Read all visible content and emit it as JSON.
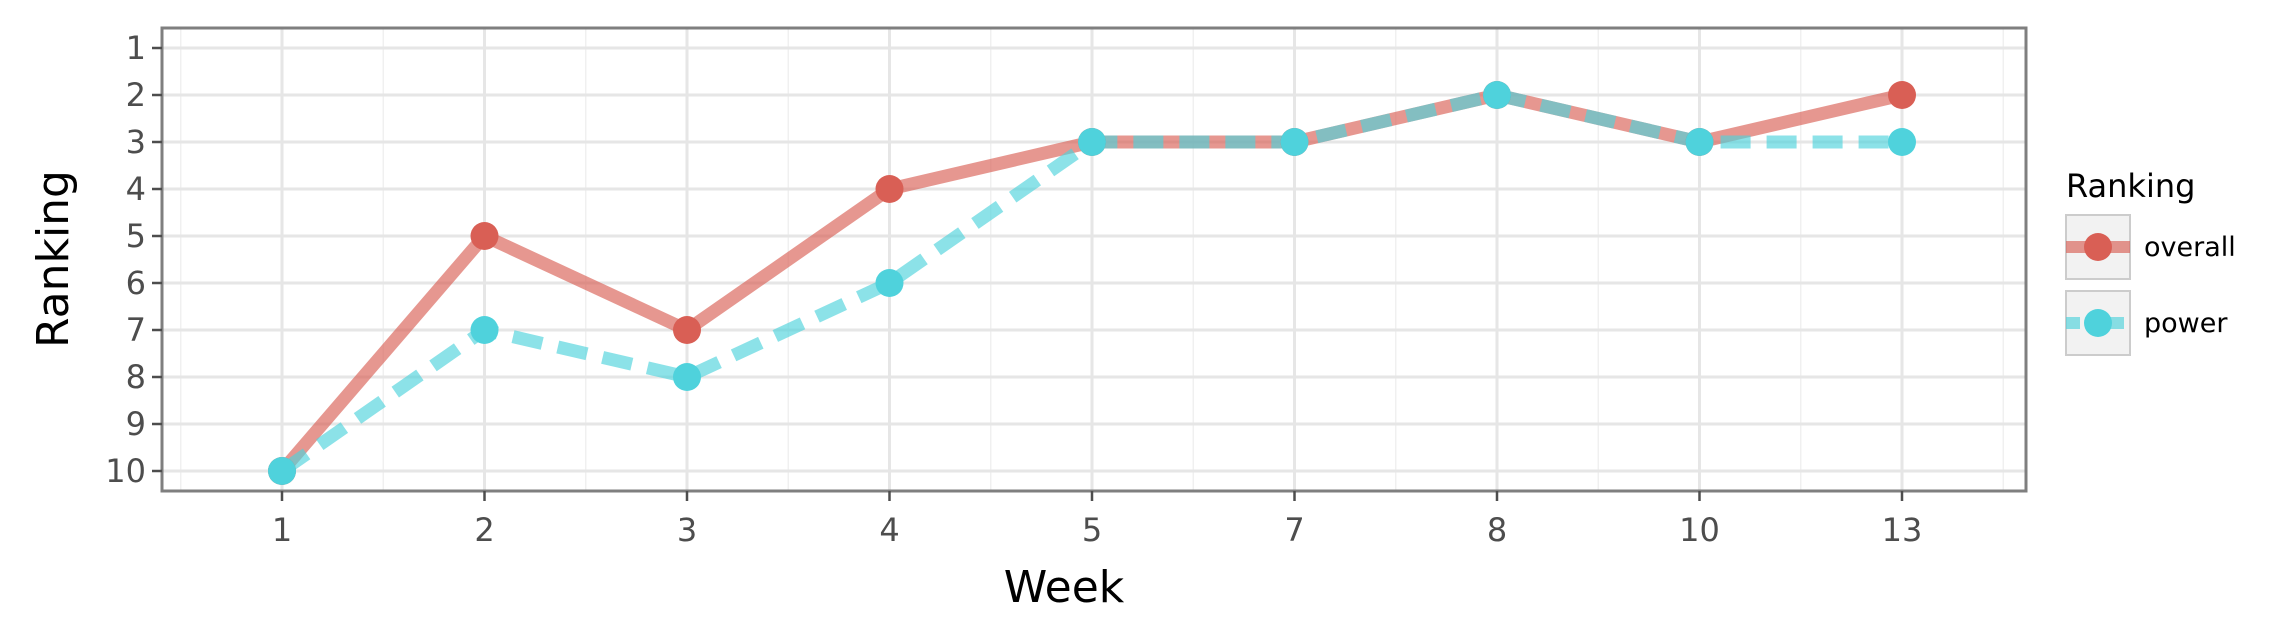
{
  "chart_data": {
    "type": "line",
    "categories": [
      "1",
      "2",
      "3",
      "4",
      "5",
      "7",
      "8",
      "10",
      "13"
    ],
    "series": [
      {
        "name": "overall",
        "values": [
          10,
          5,
          7,
          4,
          3,
          3,
          2,
          3,
          2
        ],
        "color": "#d95f55",
        "line_style": "solid"
      },
      {
        "name": "power",
        "values": [
          10,
          7,
          8,
          6,
          3,
          3,
          2,
          3,
          3
        ],
        "color": "#4fd2dc",
        "line_style": "dashed"
      }
    ],
    "xlabel": "Week",
    "ylabel": "Ranking",
    "y_ticks": [
      1,
      2,
      3,
      4,
      5,
      6,
      7,
      8,
      9,
      10
    ],
    "ylim": [
      1,
      10
    ],
    "y_reversed": true,
    "grid": true,
    "legend": {
      "title": "Ranking",
      "position": "right"
    }
  }
}
